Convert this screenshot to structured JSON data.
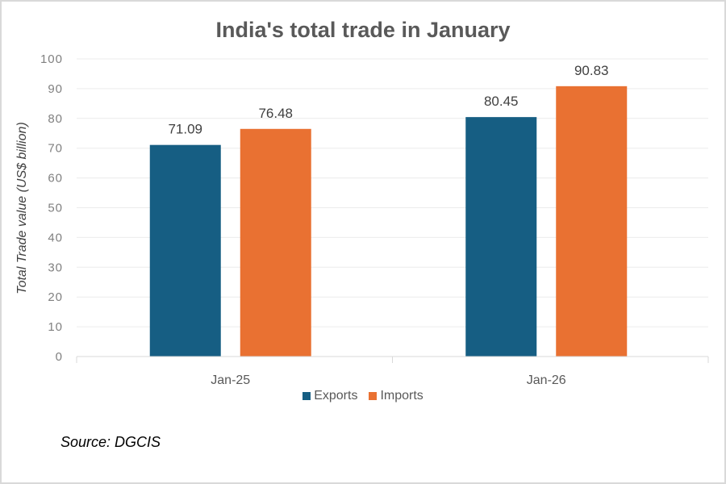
{
  "chart_data": {
    "type": "bar",
    "title": "India's total trade in January",
    "xlabel": "",
    "ylabel": "Total Trade value (US$ billion)",
    "categories": [
      "Jan-25",
      "Jan-26"
    ],
    "series": [
      {
        "name": "Exports",
        "values": [
          71.09,
          80.45
        ],
        "color": "#165e83"
      },
      {
        "name": "Imports",
        "values": [
          76.48,
          90.83
        ],
        "color": "#e97132"
      }
    ],
    "data_labels": [
      [
        "71.09",
        "80.45"
      ],
      [
        "76.48",
        "90.83"
      ]
    ],
    "ylim": [
      0,
      100
    ],
    "yticks": [
      0,
      10,
      20,
      30,
      40,
      50,
      60,
      70,
      80,
      90,
      100
    ],
    "grid": true,
    "legend_position": "bottom",
    "source": "Source: DGCIS"
  }
}
